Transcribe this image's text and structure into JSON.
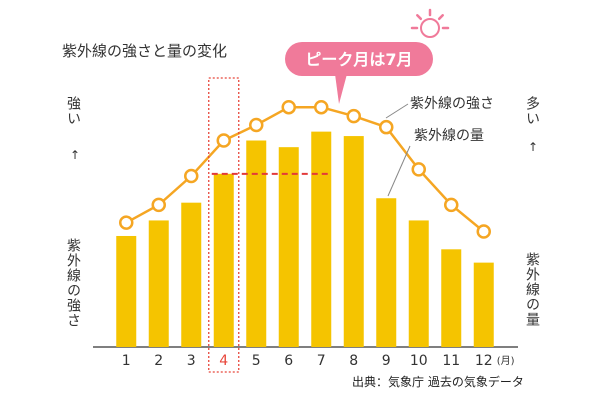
{
  "chart_data": {
    "type": "bar+line",
    "title": "紫外線の強さと量の変化",
    "categories": [
      "1",
      "2",
      "3",
      "4",
      "5",
      "6",
      "7",
      "8",
      "9",
      "10",
      "11",
      "12"
    ],
    "x_unit": "(月)",
    "series": [
      {
        "name": "紫外線の量",
        "type": "bar",
        "values": [
          0.5,
          0.57,
          0.65,
          0.78,
          0.93,
          0.9,
          0.97,
          0.95,
          0.67,
          0.57,
          0.44,
          0.38
        ],
        "color": "#f5c400"
      },
      {
        "name": "紫外線の強さ",
        "type": "line",
        "values": [
          0.56,
          0.64,
          0.77,
          0.93,
          1.0,
          1.08,
          1.08,
          1.04,
          0.99,
          0.8,
          0.64,
          0.52
        ],
        "color": "#f5a623"
      }
    ],
    "ylim": [
      0,
      1.18
    ],
    "highlight_category": "4",
    "reference_line_value": 0.78,
    "callout": "ピーク月は7月",
    "left_axis_label": "紫外線の強さ",
    "left_axis_top": "強い",
    "right_axis_label": "紫外線の量",
    "right_axis_top": "多い",
    "source": "出典：気象庁 過去の気象データ",
    "colors": {
      "bar": "#f5c400",
      "line": "#f5a623",
      "highlight": "#e8463a",
      "bubble": "#f07a9a",
      "dashed": "#e23a3a"
    }
  }
}
